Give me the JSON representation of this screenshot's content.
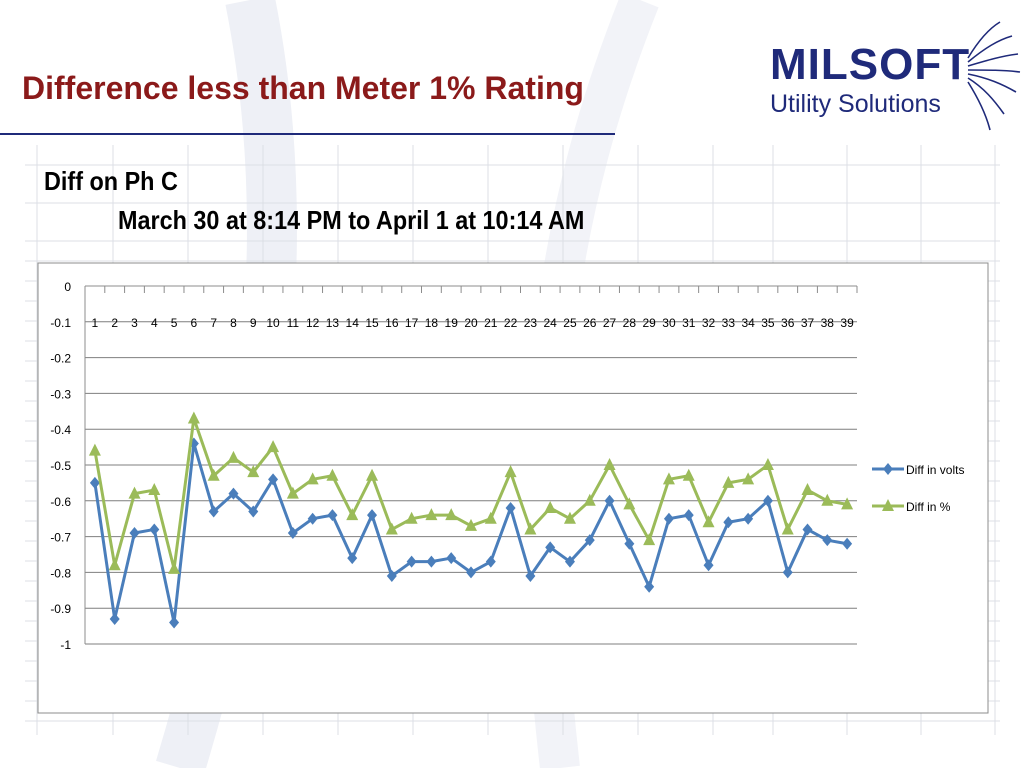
{
  "slide": {
    "title": "Difference less than Meter 1% Rating"
  },
  "logo": {
    "word": "MILSOFT",
    "subtitle": "Utility Solutions"
  },
  "colors": {
    "title": "#8b1a1a",
    "brand": "#1f2a7a",
    "volts": "#4a7ebb",
    "percent": "#9bbb59"
  },
  "chart_data": {
    "type": "line",
    "title": "Diff on Ph C",
    "subtitle": "March 30 at 8:14 PM to April 1 at 10:14 AM",
    "categories": [
      "1",
      "2",
      "3",
      "4",
      "5",
      "6",
      "7",
      "8",
      "9",
      "10",
      "11",
      "12",
      "13",
      "14",
      "15",
      "16",
      "17",
      "18",
      "19",
      "20",
      "21",
      "22",
      "23",
      "24",
      "25",
      "26",
      "27",
      "28",
      "29",
      "30",
      "31",
      "32",
      "33",
      "34",
      "35",
      "36",
      "37",
      "38",
      "39"
    ],
    "ylim": [
      -1,
      0
    ],
    "yticks": [
      "0",
      "-0.1",
      "-0.2",
      "-0.3",
      "-0.4",
      "-0.5",
      "-0.6",
      "-0.7",
      "-0.8",
      "-0.9",
      "-1"
    ],
    "grid": true,
    "legend_position": "right",
    "series": [
      {
        "name": "Diff in volts",
        "marker": "diamond",
        "values": [
          -0.55,
          -0.93,
          -0.69,
          -0.68,
          -0.94,
          -0.44,
          -0.63,
          -0.58,
          -0.63,
          -0.54,
          -0.69,
          -0.65,
          -0.64,
          -0.76,
          -0.64,
          -0.81,
          -0.77,
          -0.77,
          -0.76,
          -0.8,
          -0.77,
          -0.62,
          -0.81,
          -0.73,
          -0.77,
          -0.71,
          -0.6,
          -0.72,
          -0.84,
          -0.65,
          -0.64,
          -0.78,
          -0.66,
          -0.65,
          -0.6,
          -0.8,
          -0.68,
          -0.71,
          -0.72
        ]
      },
      {
        "name": "Diff in %",
        "marker": "triangle",
        "values": [
          -0.46,
          -0.78,
          -0.58,
          -0.57,
          -0.79,
          -0.37,
          -0.53,
          -0.48,
          -0.52,
          -0.45,
          -0.58,
          -0.54,
          -0.53,
          -0.64,
          -0.53,
          -0.68,
          -0.65,
          -0.64,
          -0.64,
          -0.67,
          -0.65,
          -0.52,
          -0.68,
          -0.62,
          -0.65,
          -0.6,
          -0.5,
          -0.61,
          -0.71,
          -0.54,
          -0.53,
          -0.66,
          -0.55,
          -0.54,
          -0.5,
          -0.68,
          -0.57,
          -0.6,
          -0.61
        ]
      }
    ]
  }
}
